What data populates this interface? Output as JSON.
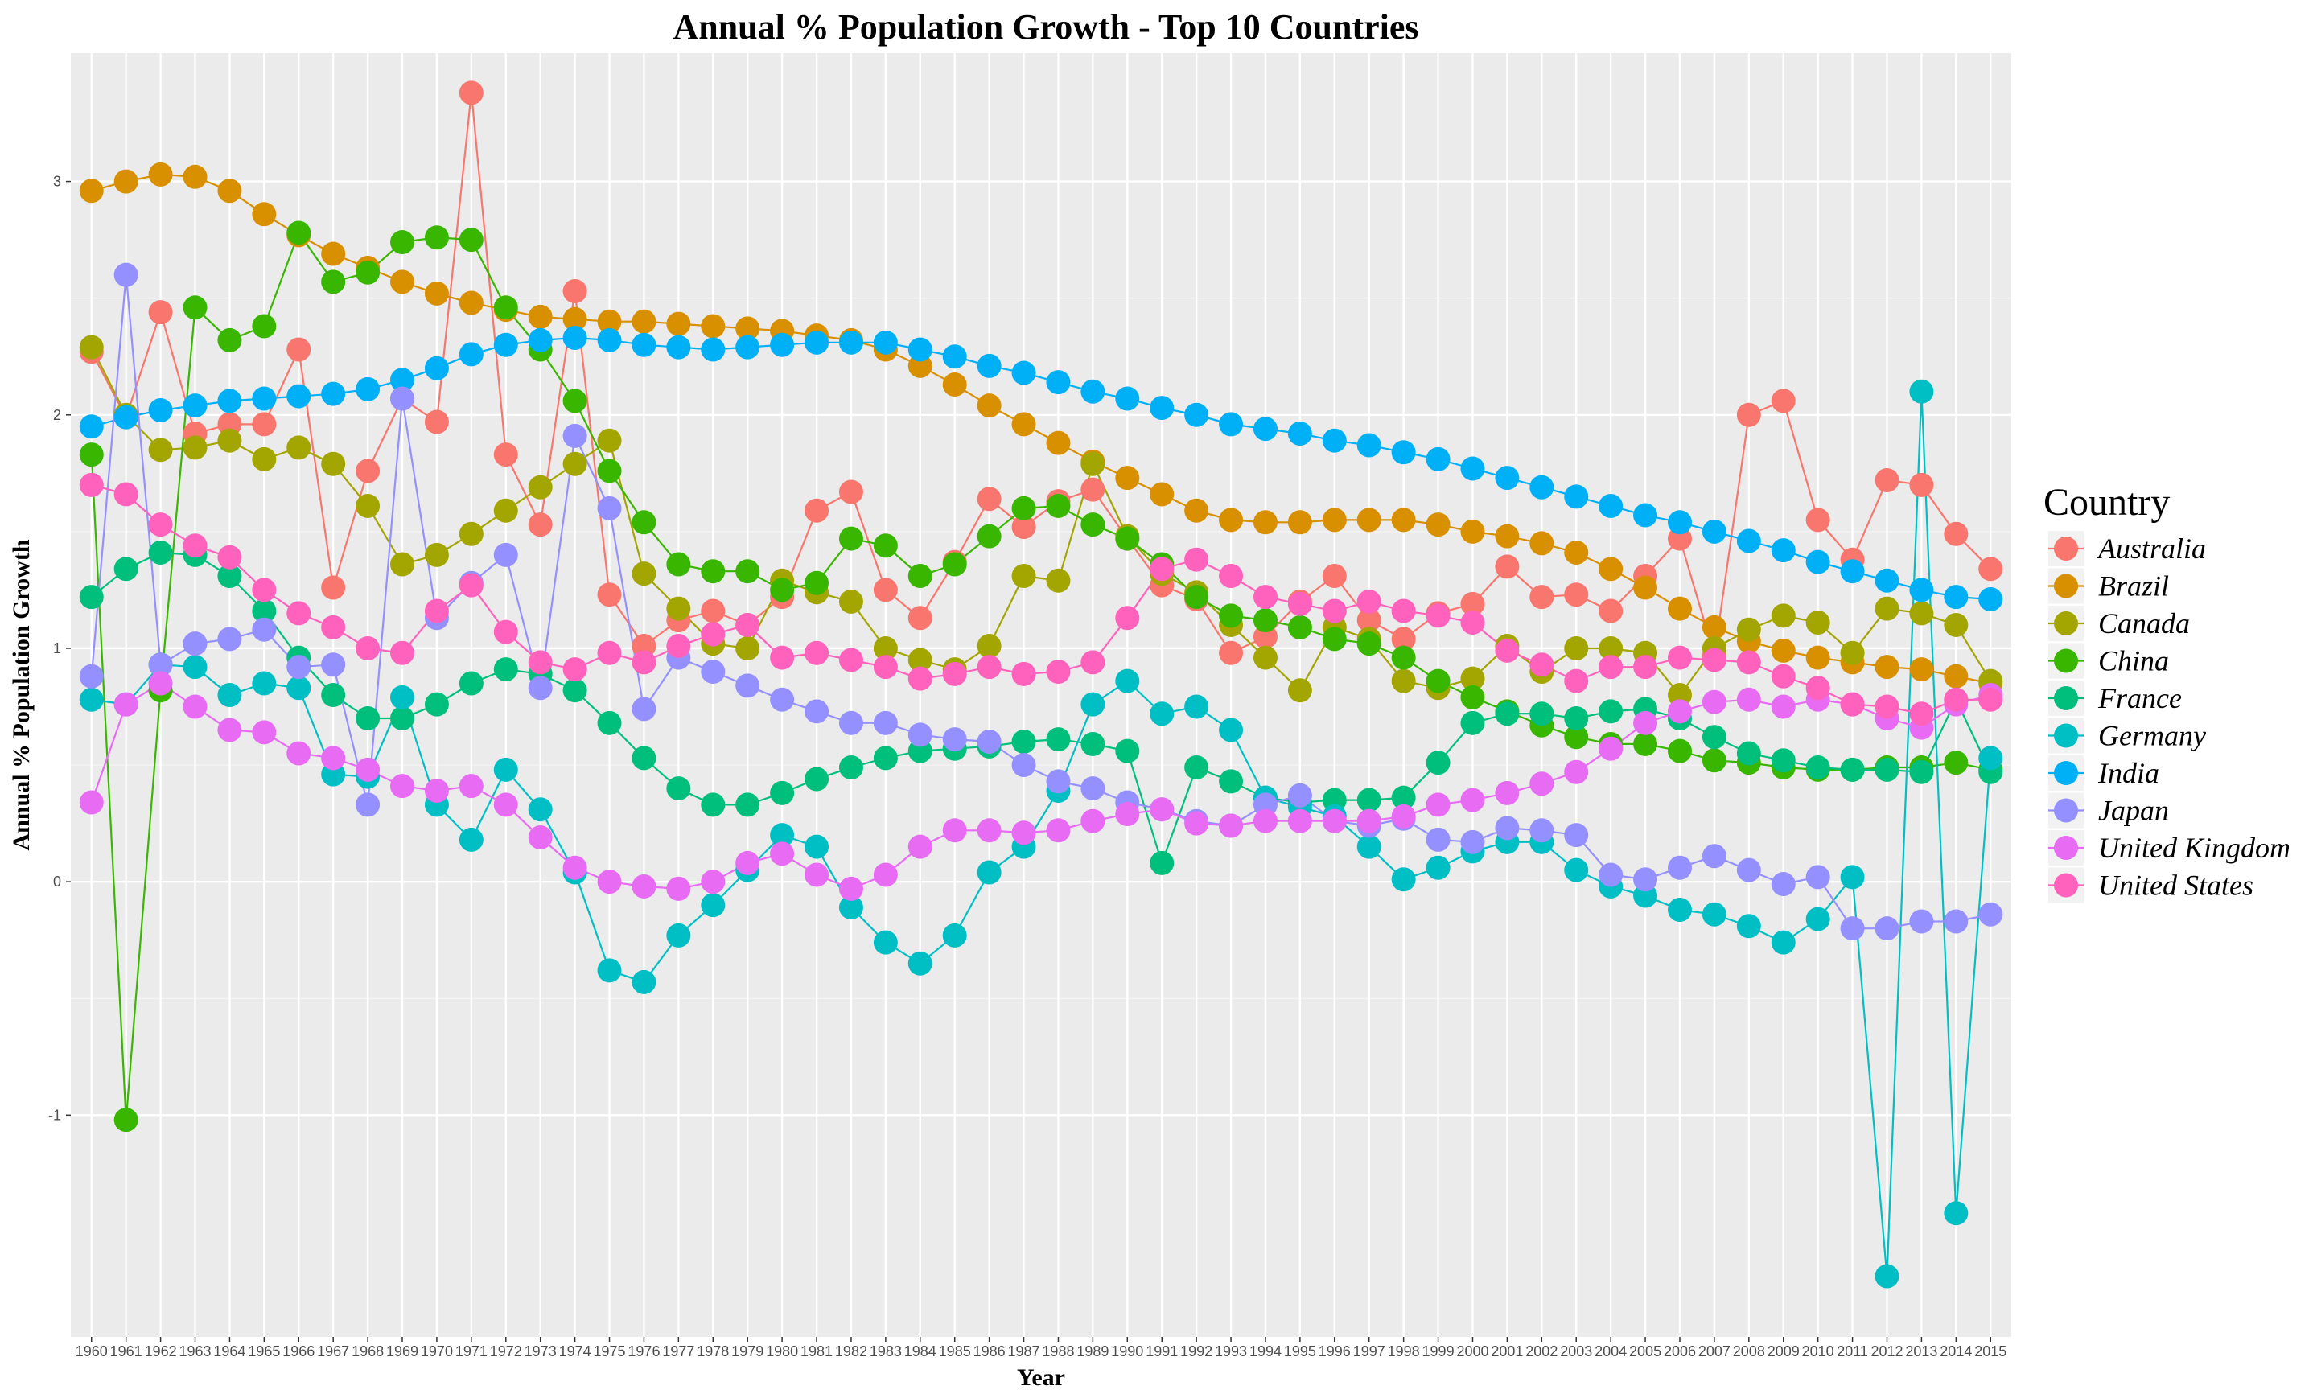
{
  "chart_data": {
    "type": "line",
    "title": "Annual % Population Growth - Top 10 Countries",
    "xlabel": "Year",
    "ylabel": "Annual % Population Growth",
    "ylim": [
      -1.95,
      3.55
    ],
    "xlim": [
      1959.4,
      2015.6
    ],
    "yticks": [
      -1,
      0,
      1,
      2,
      3
    ],
    "grid": true,
    "markers": "circle",
    "legend_title": "Country",
    "legend_position": "right",
    "x": [
      1960,
      1961,
      1962,
      1963,
      1964,
      1965,
      1966,
      1967,
      1968,
      1969,
      1970,
      1971,
      1972,
      1973,
      1974,
      1975,
      1976,
      1977,
      1978,
      1979,
      1980,
      1981,
      1982,
      1983,
      1984,
      1985,
      1986,
      1987,
      1988,
      1989,
      1990,
      1991,
      1992,
      1993,
      1994,
      1995,
      1996,
      1997,
      1998,
      1999,
      2000,
      2001,
      2002,
      2003,
      2004,
      2005,
      2006,
      2007,
      2008,
      2009,
      2010,
      2011,
      2012,
      2013,
      2014,
      2015
    ],
    "series": [
      {
        "name": "Australia",
        "color": "#F8766D",
        "values": [
          2.27,
          1.99,
          2.44,
          1.92,
          1.96,
          1.96,
          2.28,
          1.26,
          1.76,
          2.07,
          1.97,
          3.38,
          1.83,
          1.53,
          2.53,
          1.23,
          1.01,
          1.12,
          1.16,
          1.1,
          1.22,
          1.59,
          1.67,
          1.25,
          1.13,
          1.37,
          1.64,
          1.52,
          1.63,
          1.68,
          1.47,
          1.27,
          1.21,
          0.98,
          1.05,
          1.2,
          1.31,
          1.12,
          1.04,
          1.15,
          1.19,
          1.35,
          1.22,
          1.23,
          1.16,
          1.31,
          1.47,
          0.97,
          2.0,
          2.06,
          1.55,
          1.38,
          1.72,
          1.7,
          1.49,
          1.34
        ]
      },
      {
        "name": "Brazil",
        "color": "#D89000",
        "values": [
          2.96,
          3.0,
          3.03,
          3.02,
          2.96,
          2.86,
          2.77,
          2.69,
          2.63,
          2.57,
          2.52,
          2.48,
          2.45,
          2.42,
          2.41,
          2.4,
          2.4,
          2.39,
          2.38,
          2.37,
          2.36,
          2.34,
          2.32,
          2.28,
          2.21,
          2.13,
          2.04,
          1.96,
          1.88,
          1.8,
          1.73,
          1.66,
          1.59,
          1.55,
          1.54,
          1.54,
          1.55,
          1.55,
          1.55,
          1.53,
          1.5,
          1.48,
          1.45,
          1.41,
          1.34,
          1.26,
          1.17,
          1.09,
          1.03,
          0.99,
          0.96,
          0.94,
          0.92,
          0.91,
          0.88,
          0.85
        ]
      },
      {
        "name": "Canada",
        "color": "#A3A500",
        "values": [
          2.29,
          2.0,
          1.85,
          1.86,
          1.89,
          1.81,
          1.86,
          1.79,
          1.61,
          1.36,
          1.4,
          1.49,
          1.59,
          1.69,
          1.79,
          1.89,
          1.32,
          1.17,
          1.02,
          1.0,
          1.29,
          1.24,
          1.2,
          1.0,
          0.95,
          0.91,
          1.01,
          1.31,
          1.29,
          1.79,
          1.48,
          1.32,
          1.24,
          1.1,
          0.96,
          0.82,
          1.09,
          1.04,
          0.86,
          0.83,
          0.87,
          1.01,
          0.9,
          1.0,
          1.0,
          0.98,
          0.8,
          1.0,
          1.08,
          1.14,
          1.11,
          0.98,
          1.17,
          1.15,
          1.1,
          0.86
        ]
      },
      {
        "name": "China",
        "color": "#39B600",
        "values": [
          1.83,
          -1.02,
          0.82,
          2.46,
          2.32,
          2.38,
          2.78,
          2.57,
          2.61,
          2.74,
          2.76,
          2.75,
          2.46,
          2.28,
          2.06,
          1.76,
          1.54,
          1.36,
          1.33,
          1.33,
          1.25,
          1.28,
          1.47,
          1.44,
          1.31,
          1.36,
          1.48,
          1.6,
          1.61,
          1.53,
          1.47,
          1.36,
          1.22,
          1.14,
          1.12,
          1.09,
          1.04,
          1.02,
          0.96,
          0.86,
          0.79,
          0.73,
          0.67,
          0.62,
          0.59,
          0.59,
          0.56,
          0.52,
          0.51,
          0.49,
          0.48,
          0.48,
          0.49,
          0.49,
          0.51,
          0.48
        ]
      },
      {
        "name": "France",
        "color": "#00BF7D",
        "values": [
          1.22,
          1.34,
          1.41,
          1.4,
          1.31,
          1.16,
          0.96,
          0.8,
          0.7,
          0.7,
          0.76,
          0.85,
          0.91,
          0.89,
          0.82,
          0.68,
          0.53,
          0.4,
          0.33,
          0.33,
          0.38,
          0.44,
          0.49,
          0.53,
          0.56,
          0.57,
          0.58,
          0.6,
          0.61,
          0.59,
          0.56,
          0.08,
          0.49,
          0.43,
          0.36,
          0.34,
          0.35,
          0.35,
          0.36,
          0.51,
          0.68,
          0.72,
          0.72,
          0.7,
          0.73,
          0.74,
          0.7,
          0.62,
          0.55,
          0.52,
          0.49,
          0.48,
          0.48,
          0.47,
          0.78,
          0.47
        ]
      },
      {
        "name": "Germany",
        "color": "#00BFC4",
        "values": [
          0.78,
          0.76,
          0.93,
          0.92,
          0.8,
          0.85,
          0.83,
          0.46,
          0.45,
          0.79,
          0.33,
          0.18,
          0.48,
          0.31,
          0.04,
          -0.38,
          -0.43,
          -0.23,
          -0.1,
          0.05,
          0.2,
          0.15,
          -0.11,
          -0.26,
          -0.35,
          -0.23,
          0.04,
          0.15,
          0.39,
          0.76,
          0.86,
          0.72,
          0.75,
          0.65,
          0.36,
          0.32,
          0.28,
          0.15,
          0.01,
          0.06,
          0.13,
          0.17,
          0.17,
          0.05,
          -0.02,
          -0.06,
          -0.12,
          -0.14,
          -0.19,
          -0.26,
          -0.16,
          0.02,
          -1.69,
          2.1,
          -1.42,
          0.53
        ]
      },
      {
        "name": "India",
        "color": "#00B0F6",
        "values": [
          1.95,
          1.99,
          2.02,
          2.04,
          2.06,
          2.07,
          2.08,
          2.09,
          2.11,
          2.15,
          2.2,
          2.26,
          2.3,
          2.32,
          2.33,
          2.32,
          2.3,
          2.29,
          2.28,
          2.29,
          2.3,
          2.31,
          2.31,
          2.31,
          2.28,
          2.25,
          2.21,
          2.18,
          2.14,
          2.1,
          2.07,
          2.03,
          2.0,
          1.96,
          1.94,
          1.92,
          1.89,
          1.87,
          1.84,
          1.81,
          1.77,
          1.73,
          1.69,
          1.65,
          1.61,
          1.57,
          1.54,
          1.5,
          1.46,
          1.42,
          1.37,
          1.33,
          1.29,
          1.25,
          1.22,
          1.21
        ]
      },
      {
        "name": "Japan",
        "color": "#9590FF",
        "values": [
          0.88,
          2.6,
          0.93,
          1.02,
          1.04,
          1.08,
          0.92,
          0.93,
          0.33,
          2.07,
          1.13,
          1.28,
          1.4,
          0.83,
          1.91,
          1.6,
          0.74,
          0.96,
          0.9,
          0.84,
          0.78,
          0.73,
          0.68,
          0.68,
          0.63,
          0.61,
          0.6,
          0.5,
          0.43,
          0.4,
          0.34,
          0.31,
          0.26,
          0.24,
          0.33,
          0.37,
          0.26,
          0.24,
          0.27,
          0.18,
          0.17,
          0.23,
          0.22,
          0.2,
          0.03,
          0.01,
          0.06,
          0.11,
          0.05,
          -0.01,
          0.02,
          -0.2,
          -0.2,
          -0.17,
          -0.17,
          -0.14
        ]
      },
      {
        "name": "United Kingdom",
        "color": "#E76BF3",
        "values": [
          0.34,
          0.76,
          0.85,
          0.75,
          0.65,
          0.64,
          0.55,
          0.53,
          0.48,
          0.41,
          0.39,
          0.41,
          0.33,
          0.19,
          0.06,
          0.0,
          -0.02,
          -0.03,
          0.0,
          0.08,
          0.12,
          0.03,
          -0.03,
          0.03,
          0.15,
          0.22,
          0.22,
          0.21,
          0.22,
          0.26,
          0.29,
          0.31,
          0.25,
          0.24,
          0.26,
          0.26,
          0.26,
          0.26,
          0.28,
          0.33,
          0.35,
          0.38,
          0.42,
          0.47,
          0.57,
          0.68,
          0.73,
          0.77,
          0.78,
          0.75,
          0.78,
          0.76,
          0.7,
          0.66,
          0.76,
          0.8
        ]
      },
      {
        "name": "United States",
        "color": "#FF62BC",
        "values": [
          1.7,
          1.66,
          1.53,
          1.44,
          1.39,
          1.25,
          1.15,
          1.09,
          1.0,
          0.98,
          1.16,
          1.27,
          1.07,
          0.94,
          0.91,
          0.98,
          0.94,
          1.01,
          1.06,
          1.1,
          0.96,
          0.98,
          0.95,
          0.92,
          0.87,
          0.89,
          0.92,
          0.89,
          0.9,
          0.94,
          1.13,
          1.34,
          1.38,
          1.31,
          1.22,
          1.19,
          1.16,
          1.2,
          1.16,
          1.14,
          1.11,
          0.99,
          0.93,
          0.86,
          0.92,
          0.92,
          0.96,
          0.95,
          0.94,
          0.88,
          0.83,
          0.76,
          0.75,
          0.72,
          0.78,
          0.78
        ]
      }
    ]
  }
}
